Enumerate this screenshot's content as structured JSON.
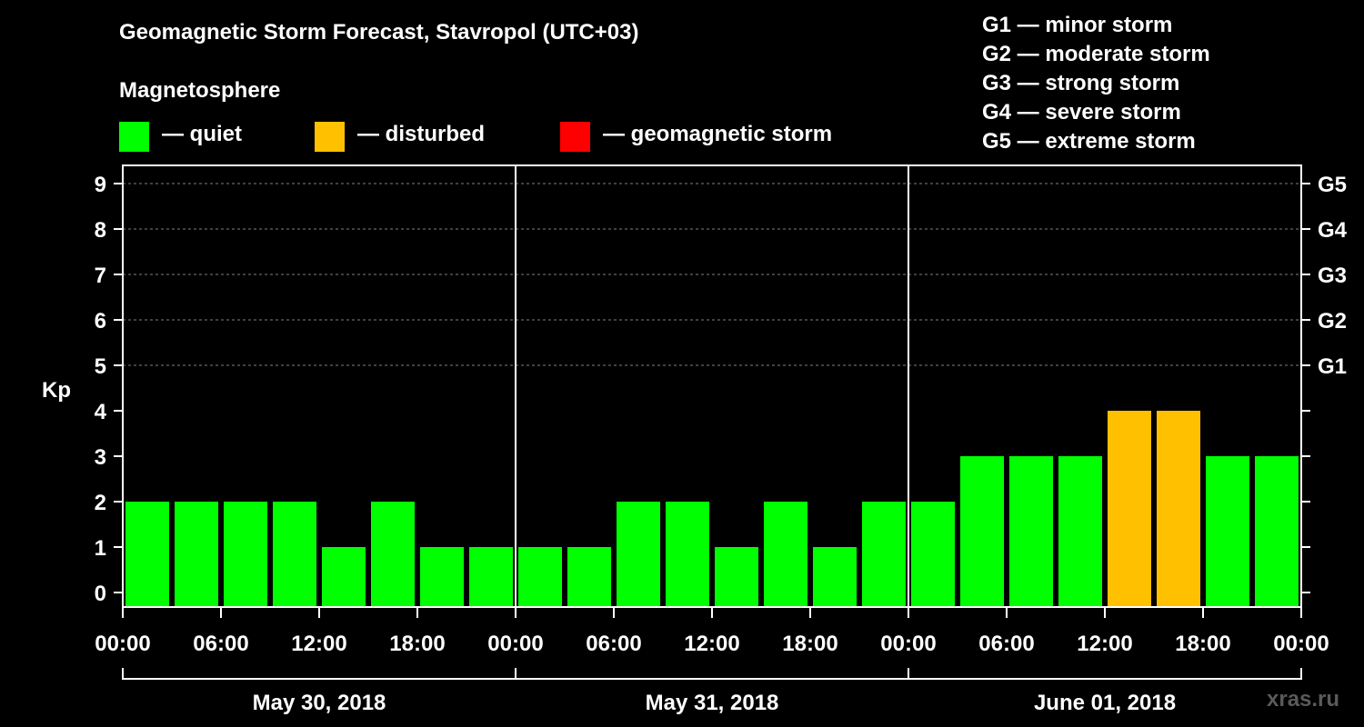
{
  "title": "Geomagnetic Storm Forecast, Stavropol (UTC+03)",
  "subtitle": "Magnetosphere",
  "legend": [
    {
      "label": "— quiet",
      "color": "#00ff00"
    },
    {
      "label": "— disturbed",
      "color": "#ffc000"
    },
    {
      "label": "— geomagnetic storm",
      "color": "#ff0000"
    }
  ],
  "storm_scale": [
    "G1 — minor storm",
    "G2 — moderate storm",
    "G3 — strong storm",
    "G4 — severe storm",
    "G5 — extreme storm"
  ],
  "watermark": "xras.ru",
  "chart_data": {
    "type": "bar",
    "ylabel": "Kp",
    "ylim": [
      0,
      9
    ],
    "yticks": [
      0,
      1,
      2,
      3,
      4,
      5,
      6,
      7,
      8,
      9
    ],
    "right_axis_labels": [
      {
        "kp": 5,
        "label": "G1"
      },
      {
        "kp": 6,
        "label": "G2"
      },
      {
        "kp": 7,
        "label": "G3"
      },
      {
        "kp": 8,
        "label": "G4"
      },
      {
        "kp": 9,
        "label": "G5"
      }
    ],
    "grid": "dashed horizontal at Kp 5-9",
    "x_tick_labels": [
      "00:00",
      "06:00",
      "12:00",
      "18:00",
      "00:00",
      "06:00",
      "12:00",
      "18:00",
      "00:00",
      "06:00",
      "12:00",
      "18:00",
      "00:00"
    ],
    "days": [
      "May 30, 2018",
      "May 31, 2018",
      "June 01, 2018"
    ],
    "values": [
      2,
      2,
      2,
      2,
      1,
      2,
      1,
      1,
      1,
      1,
      2,
      2,
      1,
      2,
      1,
      2,
      2,
      3,
      3,
      3,
      4,
      4,
      3,
      3
    ],
    "colors": {
      "quiet": "#00ff00",
      "disturbed": "#ffc000",
      "storm": "#ff0000"
    }
  }
}
